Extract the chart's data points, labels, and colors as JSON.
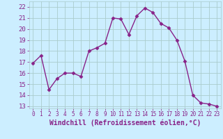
{
  "x": [
    0,
    1,
    2,
    3,
    4,
    5,
    6,
    7,
    8,
    9,
    10,
    11,
    12,
    13,
    14,
    15,
    16,
    17,
    18,
    19,
    20,
    21,
    22,
    23
  ],
  "y": [
    16.9,
    17.6,
    14.5,
    15.5,
    16.0,
    16.0,
    15.7,
    18.0,
    18.3,
    18.7,
    21.0,
    20.9,
    19.5,
    21.2,
    21.9,
    21.5,
    20.5,
    20.1,
    19.0,
    17.1,
    14.0,
    13.3,
    13.2,
    13.0
  ],
  "line_color": "#882288",
  "marker": "D",
  "markersize": 2.5,
  "linewidth": 1.0,
  "xlabel": "Windchill (Refroidissement éolien,°C)",
  "xlabel_fontsize": 7,
  "ylim": [
    12.8,
    22.5
  ],
  "yticks": [
    13,
    14,
    15,
    16,
    17,
    18,
    19,
    20,
    21,
    22
  ],
  "xlim": [
    -0.5,
    23.5
  ],
  "xticks": [
    0,
    1,
    2,
    3,
    4,
    5,
    6,
    7,
    8,
    9,
    10,
    11,
    12,
    13,
    14,
    15,
    16,
    17,
    18,
    19,
    20,
    21,
    22,
    23
  ],
  "xtick_labels": [
    "0",
    "1",
    "2",
    "3",
    "4",
    "5",
    "6",
    "7",
    "8",
    "9",
    "10",
    "11",
    "12",
    "13",
    "14",
    "15",
    "16",
    "17",
    "18",
    "19",
    "20",
    "21",
    "22",
    "23"
  ],
  "background_color": "#cceeff",
  "grid_color": "#aacccc",
  "tick_color": "#882288",
  "ytick_fontsize": 6.5,
  "xtick_fontsize": 5.5
}
